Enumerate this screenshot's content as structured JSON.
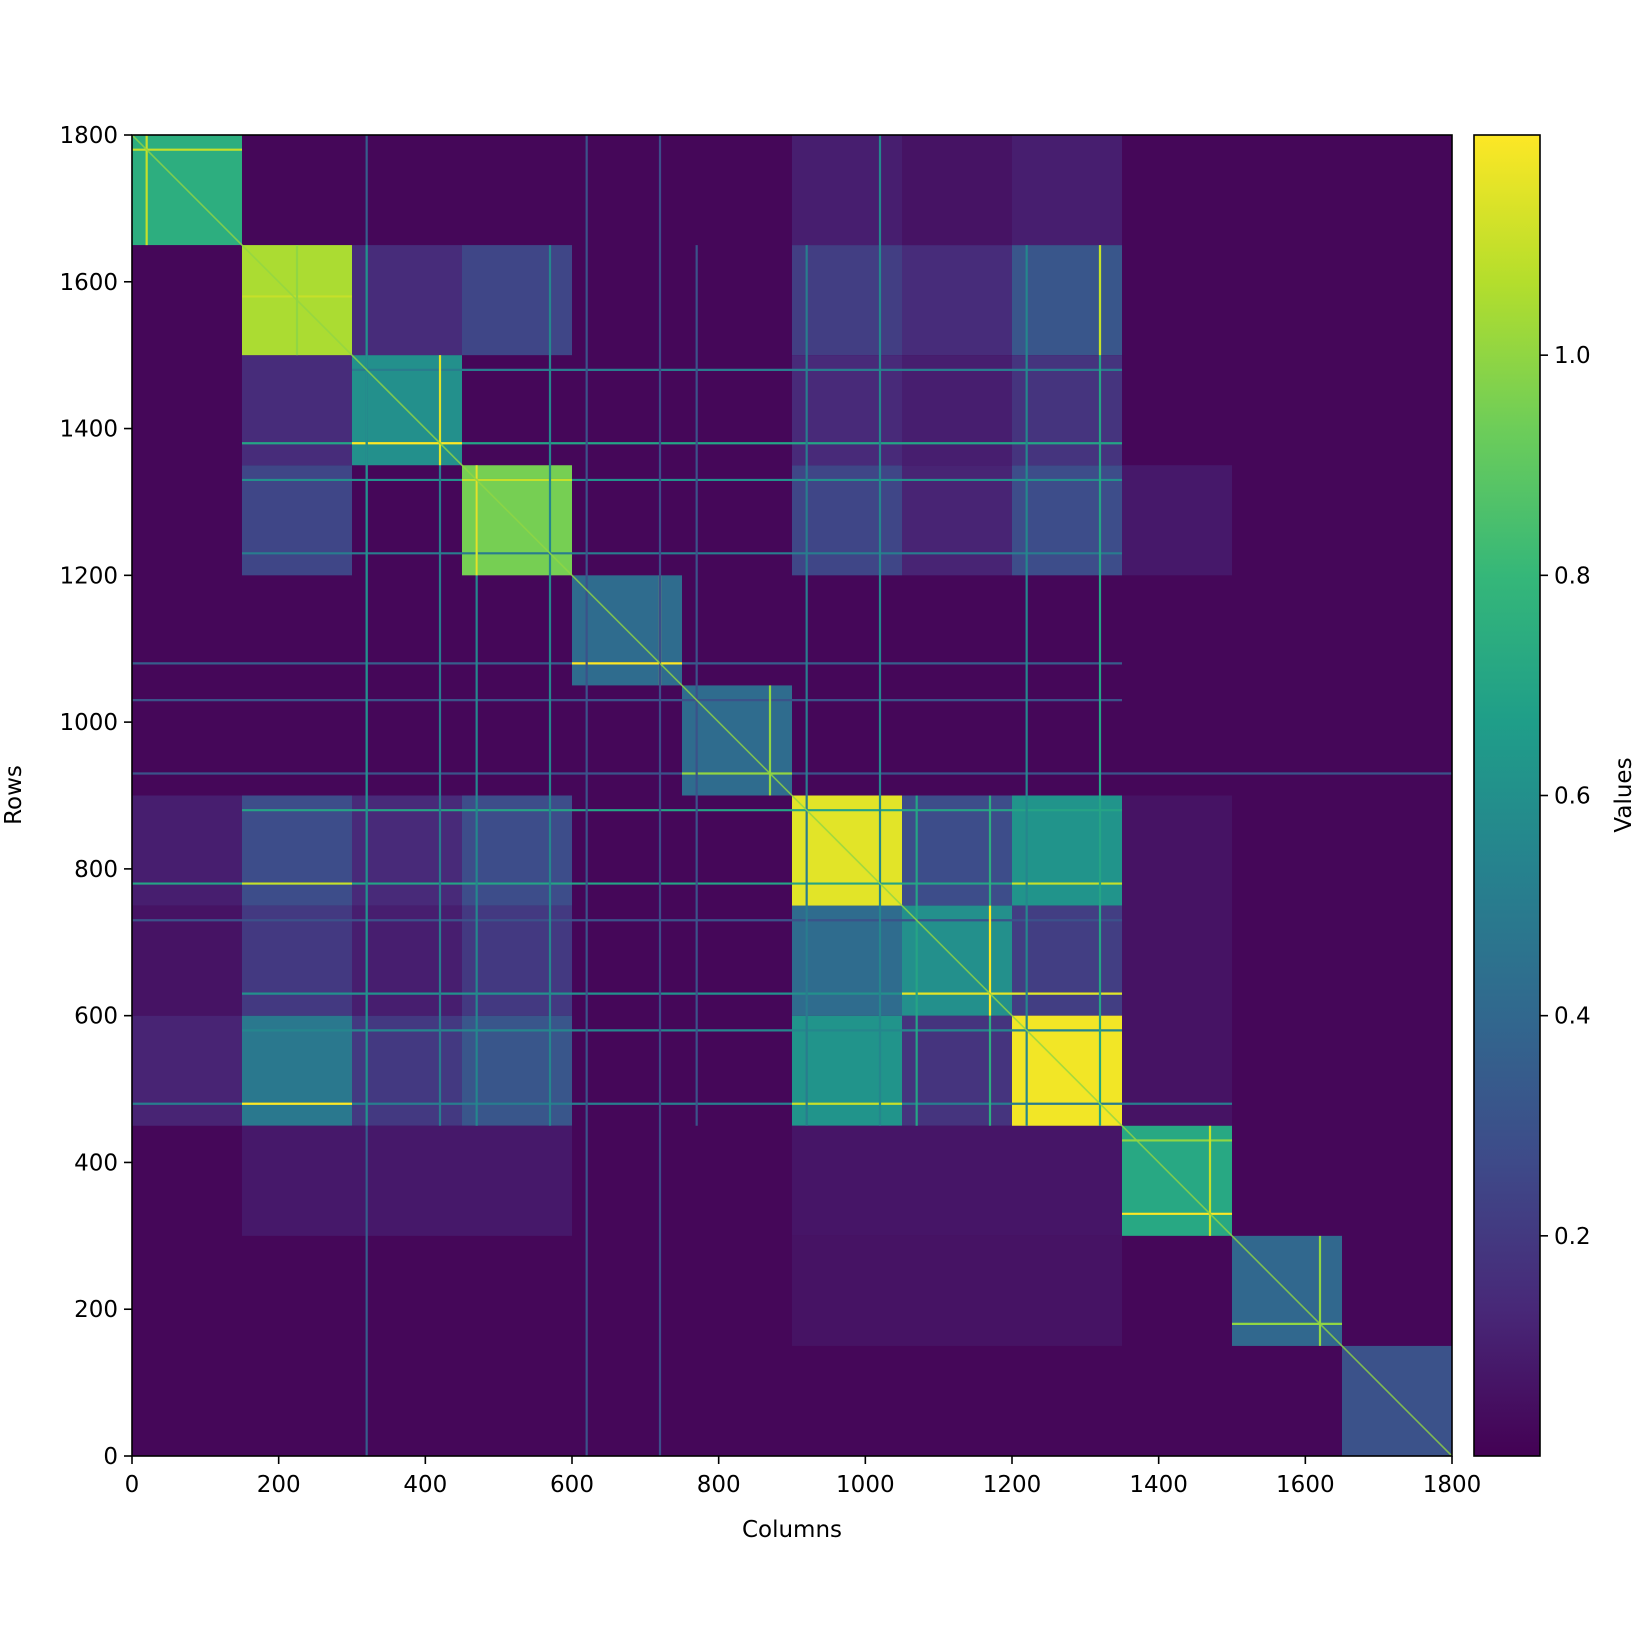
{
  "chart_data": {
    "type": "heatmap",
    "title": "",
    "xlabel": "Columns",
    "ylabel": "Rows",
    "colorbar_label": "Values",
    "colormap": "viridis",
    "xlim": [
      0,
      1800
    ],
    "ylim": [
      0,
      1800
    ],
    "value_range": [
      0.0,
      1.2
    ],
    "x_ticks": [
      "0",
      "200",
      "400",
      "600",
      "800",
      "1000",
      "1200",
      "1400",
      "1600",
      "1800"
    ],
    "y_ticks": [
      "0",
      "200",
      "400",
      "600",
      "800",
      "1000",
      "1200",
      "1400",
      "1600",
      "1800"
    ],
    "colorbar_ticks": [
      "0.2",
      "0.4",
      "0.6",
      "0.8",
      "1.0"
    ],
    "colorbar_tick_values": [
      0.2,
      0.4,
      0.6,
      0.8,
      1.0
    ],
    "background_value": 0.02,
    "blocks": [
      {
        "x": [
          0,
          150
        ],
        "y": [
          1650,
          1800
        ],
        "value": 0.75
      },
      {
        "x": [
          150,
          300
        ],
        "y": [
          1500,
          1650
        ],
        "value": 1.05
      },
      {
        "x": [
          300,
          450
        ],
        "y": [
          1350,
          1500
        ],
        "value": 0.6
      },
      {
        "x": [
          450,
          600
        ],
        "y": [
          1200,
          1350
        ],
        "value": 0.95
      },
      {
        "x": [
          600,
          750
        ],
        "y": [
          1050,
          1200
        ],
        "value": 0.42
      },
      {
        "x": [
          750,
          900
        ],
        "y": [
          900,
          1050
        ],
        "value": 0.42
      },
      {
        "x": [
          900,
          1050
        ],
        "y": [
          750,
          900
        ],
        "value": 1.15
      },
      {
        "x": [
          1050,
          1200
        ],
        "y": [
          600,
          750
        ],
        "value": 0.6
      },
      {
        "x": [
          1200,
          1350
        ],
        "y": [
          450,
          600
        ],
        "value": 1.18
      },
      {
        "x": [
          1350,
          1500
        ],
        "y": [
          300,
          450
        ],
        "value": 0.72
      },
      {
        "x": [
          1500,
          1650
        ],
        "y": [
          150,
          300
        ],
        "value": 0.4
      },
      {
        "x": [
          1650,
          1800
        ],
        "y": [
          0,
          150
        ],
        "value": 0.3
      }
    ],
    "off_diagonal_blocks": [
      {
        "x": [
          150,
          300
        ],
        "y": [
          1200,
          1350
        ],
        "value": 0.25
      },
      {
        "x": [
          450,
          600
        ],
        "y": [
          1500,
          1650
        ],
        "value": 0.25
      },
      {
        "x": [
          300,
          450
        ],
        "y": [
          1500,
          1650
        ],
        "value": 0.15
      },
      {
        "x": [
          150,
          300
        ],
        "y": [
          1350,
          1500
        ],
        "value": 0.15
      },
      {
        "x": [
          900,
          1050
        ],
        "y": [
          1500,
          1650
        ],
        "value": 0.22
      },
      {
        "x": [
          1200,
          1350
        ],
        "y": [
          1500,
          1650
        ],
        "value": 0.32
      },
      {
        "x": [
          1050,
          1200
        ],
        "y": [
          1500,
          1650
        ],
        "value": 0.15
      },
      {
        "x": [
          900,
          1050
        ],
        "y": [
          1650,
          1800
        ],
        "value": 0.1
      },
      {
        "x": [
          1200,
          1350
        ],
        "y": [
          1650,
          1800
        ],
        "value": 0.1
      },
      {
        "x": [
          1050,
          1200
        ],
        "y": [
          1650,
          1800
        ],
        "value": 0.06
      },
      {
        "x": [
          900,
          1050
        ],
        "y": [
          1200,
          1350
        ],
        "value": 0.25
      },
      {
        "x": [
          1200,
          1350
        ],
        "y": [
          1200,
          1350
        ],
        "value": 0.28
      },
      {
        "x": [
          1050,
          1200
        ],
        "y": [
          1200,
          1350
        ],
        "value": 0.12
      },
      {
        "x": [
          900,
          1050
        ],
        "y": [
          1350,
          1500
        ],
        "value": 0.14
      },
      {
        "x": [
          1200,
          1350
        ],
        "y": [
          1350,
          1500
        ],
        "value": 0.18
      },
      {
        "x": [
          1050,
          1200
        ],
        "y": [
          1350,
          1500
        ],
        "value": 0.1
      },
      {
        "x": [
          150,
          300
        ],
        "y": [
          750,
          900
        ],
        "value": 0.28
      },
      {
        "x": [
          450,
          600
        ],
        "y": [
          750,
          900
        ],
        "value": 0.28
      },
      {
        "x": [
          300,
          450
        ],
        "y": [
          750,
          900
        ],
        "value": 0.14
      },
      {
        "x": [
          0,
          150
        ],
        "y": [
          750,
          900
        ],
        "value": 0.1
      },
      {
        "x": [
          150,
          300
        ],
        "y": [
          450,
          600
        ],
        "value": 0.48
      },
      {
        "x": [
          450,
          600
        ],
        "y": [
          450,
          600
        ],
        "value": 0.32
      },
      {
        "x": [
          300,
          450
        ],
        "y": [
          450,
          600
        ],
        "value": 0.2
      },
      {
        "x": [
          0,
          150
        ],
        "y": [
          450,
          600
        ],
        "value": 0.12
      },
      {
        "x": [
          150,
          300
        ],
        "y": [
          600,
          750
        ],
        "value": 0.2
      },
      {
        "x": [
          450,
          600
        ],
        "y": [
          600,
          750
        ],
        "value": 0.2
      },
      {
        "x": [
          300,
          450
        ],
        "y": [
          600,
          750
        ],
        "value": 0.1
      },
      {
        "x": [
          0,
          150
        ],
        "y": [
          600,
          750
        ],
        "value": 0.06
      },
      {
        "x": [
          900,
          1050
        ],
        "y": [
          450,
          600
        ],
        "value": 0.62
      },
      {
        "x": [
          1200,
          1350
        ],
        "y": [
          750,
          900
        ],
        "value": 0.62
      },
      {
        "x": [
          1050,
          1200
        ],
        "y": [
          750,
          900
        ],
        "value": 0.28
      },
      {
        "x": [
          900,
          1050
        ],
        "y": [
          600,
          750
        ],
        "value": 0.42
      },
      {
        "x": [
          1200,
          1350
        ],
        "y": [
          600,
          750
        ],
        "value": 0.22
      },
      {
        "x": [
          1050,
          1200
        ],
        "y": [
          450,
          600
        ],
        "value": 0.18
      },
      {
        "x": [
          150,
          600
        ],
        "y": [
          300,
          450
        ],
        "value": 0.08
      },
      {
        "x": [
          900,
          1350
        ],
        "y": [
          300,
          450
        ],
        "value": 0.07
      },
      {
        "x": [
          900,
          1350
        ],
        "y": [
          150,
          300
        ],
        "value": 0.06
      },
      {
        "x": [
          1350,
          1500
        ],
        "y": [
          450,
          900
        ],
        "value": 0.06
      },
      {
        "x": [
          1350,
          1500
        ],
        "y": [
          1200,
          1350
        ],
        "value": 0.08
      }
    ],
    "horizontal_lines": [
      {
        "y": 1780,
        "x": [
          0,
          150
        ],
        "value": 1.1
      },
      {
        "y": 1580,
        "x": [
          150,
          300
        ],
        "value": 1.1
      },
      {
        "y": 1480,
        "x": [
          300,
          1350
        ],
        "value": 0.5
      },
      {
        "y": 1380,
        "x": [
          150,
          1350
        ],
        "value": 0.7
      },
      {
        "y": 1380,
        "x": [
          300,
          450
        ],
        "value": 1.2
      },
      {
        "y": 1330,
        "x": [
          150,
          1350
        ],
        "value": 0.6
      },
      {
        "y": 1330,
        "x": [
          450,
          600
        ],
        "value": 1.1
      },
      {
        "y": 1230,
        "x": [
          150,
          1350
        ],
        "value": 0.5
      },
      {
        "y": 1080,
        "x": [
          0,
          1350
        ],
        "value": 0.35
      },
      {
        "y": 1080,
        "x": [
          600,
          750
        ],
        "value": 1.2
      },
      {
        "y": 1030,
        "x": [
          0,
          1350
        ],
        "value": 0.3
      },
      {
        "y": 930,
        "x": [
          0,
          1800
        ],
        "value": 0.3
      },
      {
        "y": 930,
        "x": [
          750,
          900
        ],
        "value": 1.0
      },
      {
        "y": 880,
        "x": [
          150,
          1350
        ],
        "value": 0.7
      },
      {
        "y": 780,
        "x": [
          0,
          1350
        ],
        "value": 0.7
      },
      {
        "y": 780,
        "x": [
          150,
          300
        ],
        "value": 1.1
      },
      {
        "y": 780,
        "x": [
          1200,
          1350
        ],
        "value": 1.1
      },
      {
        "y": 730,
        "x": [
          0,
          1350
        ],
        "value": 0.3
      },
      {
        "y": 630,
        "x": [
          150,
          1350
        ],
        "value": 0.6
      },
      {
        "y": 630,
        "x": [
          1050,
          1350
        ],
        "value": 1.15
      },
      {
        "y": 580,
        "x": [
          150,
          1350
        ],
        "value": 0.55
      },
      {
        "y": 480,
        "x": [
          0,
          1500
        ],
        "value": 0.5
      },
      {
        "y": 480,
        "x": [
          150,
          300
        ],
        "value": 1.2
      },
      {
        "y": 480,
        "x": [
          900,
          1050
        ],
        "value": 1.1
      },
      {
        "y": 430,
        "x": [
          1350,
          1500
        ],
        "value": 1.0
      },
      {
        "y": 330,
        "x": [
          1350,
          1500
        ],
        "value": 1.2
      },
      {
        "y": 180,
        "x": [
          1500,
          1650
        ],
        "value": 1.0
      }
    ],
    "vertical_lines": [
      {
        "x": 20,
        "y": [
          1650,
          1800
        ],
        "value": 1.1
      },
      {
        "x": 225,
        "y": [
          1500,
          1650
        ],
        "value": 1.0
      },
      {
        "x": 320,
        "y": [
          0,
          1800
        ],
        "value": 0.35
      },
      {
        "x": 320,
        "y": [
          450,
          1650
        ],
        "value": 0.6
      },
      {
        "x": 420,
        "y": [
          450,
          1500
        ],
        "value": 0.5
      },
      {
        "x": 420,
        "y": [
          1350,
          1500
        ],
        "value": 1.15
      },
      {
        "x": 470,
        "y": [
          450,
          1350
        ],
        "value": 0.55
      },
      {
        "x": 470,
        "y": [
          1200,
          1350
        ],
        "value": 1.15
      },
      {
        "x": 570,
        "y": [
          450,
          1650
        ],
        "value": 0.55
      },
      {
        "x": 620,
        "y": [
          0,
          1800
        ],
        "value": 0.3
      },
      {
        "x": 720,
        "y": [
          1050,
          1200
        ],
        "value": 1.2
      },
      {
        "x": 720,
        "y": [
          0,
          1800
        ],
        "value": 0.28
      },
      {
        "x": 770,
        "y": [
          450,
          1650
        ],
        "value": 0.3
      },
      {
        "x": 870,
        "y": [
          900,
          1050
        ],
        "value": 1.0
      },
      {
        "x": 920,
        "y": [
          450,
          1650
        ],
        "value": 0.5
      },
      {
        "x": 1020,
        "y": [
          450,
          1800
        ],
        "value": 0.55
      },
      {
        "x": 1070,
        "y": [
          450,
          900
        ],
        "value": 0.7
      },
      {
        "x": 1170,
        "y": [
          450,
          900
        ],
        "value": 0.75
      },
      {
        "x": 1170,
        "y": [
          600,
          750
        ],
        "value": 1.2
      },
      {
        "x": 1220,
        "y": [
          450,
          1650
        ],
        "value": 0.55
      },
      {
        "x": 1320,
        "y": [
          450,
          1650
        ],
        "value": 0.7
      },
      {
        "x": 1320,
        "y": [
          1500,
          1650
        ],
        "value": 1.1
      },
      {
        "x": 1470,
        "y": [
          300,
          450
        ],
        "value": 1.1
      },
      {
        "x": 1620,
        "y": [
          150,
          300
        ],
        "value": 1.0
      }
    ]
  }
}
